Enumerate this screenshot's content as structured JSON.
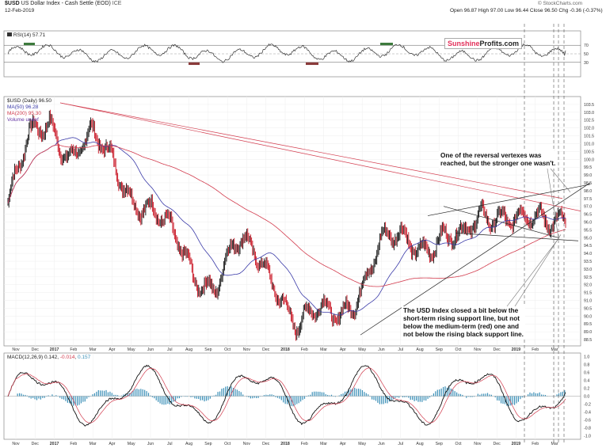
{
  "header": {
    "symbol": "$USD",
    "instrument": "US Dollar Index - Cash Settle (EOD)",
    "exchange": "ICE",
    "date": "12-Feb-2019",
    "credit": "© StockCharts.com",
    "open": "Open 96.87",
    "high": "High 97.00",
    "low": "Low 96.44",
    "close": "Close 96.50",
    "change": "Chg -0.36 (-0.37%)"
  },
  "brand": {
    "part1": "Sunshine",
    "part2": "Profits.com",
    "color1": "#e3305a"
  },
  "colors": {
    "price_up": "#111111",
    "price_down": "#c8101f",
    "ma50": "#3a3aa8",
    "ma200": "#d23b4d",
    "resistance": "#d23b4d",
    "support": "#222222",
    "macd_hist": "#3a8fb7",
    "rsi_ob": "#3c7a3c",
    "rsi_os": "#8a3a3a"
  },
  "annotations": {
    "top": [
      "One of the reversal vertexes was",
      "reached, but the stronger one wasn't."
    ],
    "bottom": [
      "The USD Index closed a bit below the",
      "short-term rising support line, but not",
      "below the medium-term (red) one and",
      "not below the rising black support line."
    ]
  },
  "chart_data": [
    {
      "type": "line",
      "panel": "rsi",
      "title": "RSI(14) 57.71",
      "ylim": [
        0,
        100
      ],
      "y_ticks": [
        "70",
        "50",
        "30"
      ],
      "indicator_value": 57.71
    },
    {
      "type": "candlestick",
      "panel": "price",
      "title": "$USD (Daily) 96.50",
      "legend": [
        "MA(50) 96.28",
        "MA(200) 95.30",
        "Volume undef"
      ],
      "ylim": [
        88.2,
        103.9
      ],
      "y_ticks": [
        "103.5",
        "103.0",
        "102.5",
        "102.0",
        "101.5",
        "101.0",
        "100.5",
        "100.0",
        "99.5",
        "99.0",
        "98.5",
        "98.0",
        "97.5",
        "97.0",
        "96.5",
        "96.0",
        "95.5",
        "95.0",
        "94.5",
        "94.0",
        "93.5",
        "93.0",
        "92.5",
        "92.0",
        "91.5",
        "91.0",
        "90.5",
        "90.0",
        "89.5",
        "89.0",
        "88.5"
      ],
      "x_ticks": [
        "Nov",
        "Dec",
        "2017",
        "Feb",
        "Mar",
        "Apr",
        "May",
        "Jun",
        "Jul",
        "Aug",
        "Sep",
        "Oct",
        "Nov",
        "Dec",
        "2018",
        "Feb",
        "Mar",
        "Apr",
        "May",
        "Jun",
        "Jul",
        "Aug",
        "Sep",
        "Oct",
        "Nov",
        "Dec",
        "2019",
        "Feb",
        "Mar"
      ],
      "key_prices": [
        {
          "month": 0,
          "close": 97.2
        },
        {
          "month": 1,
          "close": 101.0
        },
        {
          "month": 2,
          "close": 102.5
        },
        {
          "month": 3,
          "close": 100.4
        },
        {
          "month": 4,
          "close": 101.3
        },
        {
          "month": 5,
          "close": 99.8
        },
        {
          "month": 6,
          "close": 97.8
        },
        {
          "month": 7,
          "close": 96.9
        },
        {
          "month": 8,
          "close": 94.8
        },
        {
          "month": 9,
          "close": 92.6
        },
        {
          "month": 10,
          "close": 92.2
        },
        {
          "month": 11,
          "close": 94.5
        },
        {
          "month": 12,
          "close": 93.7
        },
        {
          "month": 13,
          "close": 92.2
        },
        {
          "month": 14,
          "close": 89.5
        },
        {
          "month": 15,
          "close": 90.0
        },
        {
          "month": 16,
          "close": 90.1
        },
        {
          "month": 17,
          "close": 91.8
        },
        {
          "month": 18,
          "close": 94.4
        },
        {
          "month": 19,
          "close": 94.8
        },
        {
          "month": 20,
          "close": 94.6
        },
        {
          "month": 21,
          "close": 95.2
        },
        {
          "month": 22,
          "close": 94.6
        },
        {
          "month": 23,
          "close": 96.5
        },
        {
          "month": 24,
          "close": 96.8
        },
        {
          "month": 25,
          "close": 96.1
        },
        {
          "month": 26,
          "close": 95.6
        },
        {
          "month": 27,
          "close": 96.5
        }
      ]
    },
    {
      "type": "line",
      "panel": "macd",
      "title": "MACD(12,26,9)",
      "values_text": [
        "0.142",
        "-0.014",
        "0.157"
      ],
      "ylim": [
        -1.05,
        1.05
      ],
      "y_ticks": [
        "1.0",
        "0.8",
        "0.6",
        "0.4",
        "0.2",
        "0.0",
        "-0.2",
        "-0.4",
        "-0.6",
        "-0.8",
        "-1.0"
      ],
      "x_ticks": [
        "Nov",
        "Dec",
        "2017",
        "Feb",
        "Mar",
        "Apr",
        "May",
        "Jun",
        "Jul",
        "Aug",
        "Sep",
        "Oct",
        "Nov",
        "Dec",
        "2018",
        "Feb",
        "Mar",
        "Apr",
        "May",
        "Jun",
        "Jul",
        "Aug",
        "Sep",
        "Oct",
        "Nov",
        "Dec",
        "2019",
        "Feb",
        "Mar"
      ]
    }
  ]
}
